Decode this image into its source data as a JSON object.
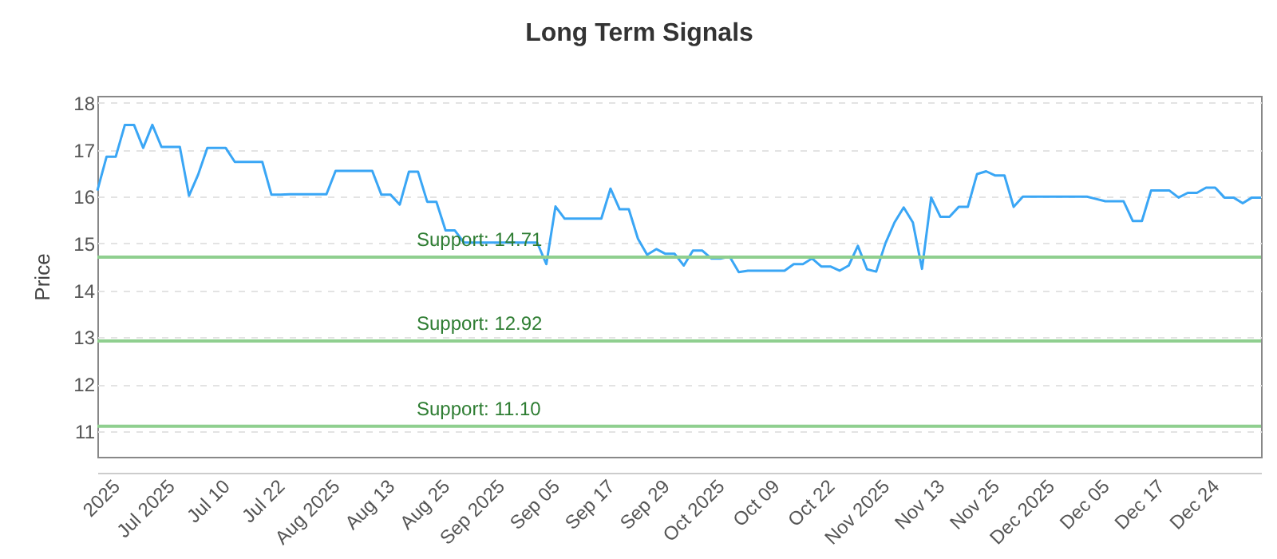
{
  "chart_data": {
    "type": "line",
    "title": "Long Term Signals",
    "ylabel": "Price",
    "categories": [
      null,
      null,
      "2025",
      null,
      null,
      null,
      null,
      null,
      "Jul 2025",
      null,
      null,
      null,
      null,
      null,
      "Jul 10",
      null,
      null,
      null,
      null,
      null,
      "Jul 22",
      null,
      null,
      null,
      null,
      null,
      "Aug 2025",
      null,
      null,
      null,
      null,
      null,
      "Aug 13",
      null,
      null,
      null,
      null,
      null,
      "Aug 25",
      null,
      null,
      null,
      null,
      null,
      "Sep 2025",
      null,
      null,
      null,
      null,
      null,
      "Sep 05",
      null,
      null,
      null,
      null,
      null,
      "Sep 17",
      null,
      null,
      null,
      null,
      null,
      "Sep 29",
      null,
      null,
      null,
      null,
      null,
      "Oct 2025",
      null,
      null,
      null,
      null,
      null,
      "Oct 09",
      null,
      null,
      null,
      null,
      null,
      "Oct 22",
      null,
      null,
      null,
      null,
      null,
      "Nov 2025",
      null,
      null,
      null,
      null,
      null,
      "Nov 13",
      null,
      null,
      null,
      null,
      null,
      "Nov 25",
      null,
      null,
      null,
      null,
      null,
      "Dec 2025",
      null,
      null,
      null,
      null,
      null,
      "Dec 05",
      null,
      null,
      null,
      null,
      null,
      "Dec 17",
      null,
      null,
      null,
      null,
      null,
      "Dec 24",
      null,
      null,
      null,
      null,
      null
    ],
    "series": [
      {
        "color": "#3aa6f5",
        "values": [
          16.13,
          16.85,
          16.85,
          17.53,
          17.53,
          17.04,
          17.53,
          17.06,
          17.06,
          17.06,
          16.02,
          16.47,
          17.04,
          17.04,
          17.04,
          16.74,
          16.74,
          16.74,
          16.74,
          16.04,
          16.04,
          16.05,
          16.05,
          16.05,
          16.05,
          16.05,
          16.55,
          16.55,
          16.55,
          16.55,
          16.55,
          16.04,
          16.04,
          15.83,
          16.53,
          16.53,
          15.89,
          15.89,
          15.28,
          15.28,
          15.02,
          15.02,
          15.02,
          15.02,
          15.02,
          15.02,
          15.02,
          15.02,
          15.02,
          14.56,
          15.79,
          15.53,
          15.53,
          15.53,
          15.53,
          15.53,
          16.17,
          15.73,
          15.73,
          15.1,
          14.76,
          14.88,
          14.78,
          14.78,
          14.53,
          14.85,
          14.85,
          14.68,
          14.68,
          14.72,
          14.39,
          14.42,
          14.42,
          14.42,
          14.42,
          14.42,
          14.56,
          14.56,
          14.68,
          14.51,
          14.51,
          14.42,
          14.53,
          14.95,
          14.45,
          14.4,
          15.0,
          15.45,
          15.77,
          15.45,
          14.46,
          15.98,
          15.57,
          15.57,
          15.78,
          15.78,
          16.48,
          16.54,
          16.45,
          16.45,
          15.78,
          16.0,
          16.0,
          16.0,
          16.0,
          16.0,
          16.0,
          16.0,
          16.0,
          15.95,
          15.9,
          15.9,
          15.9,
          15.48,
          15.48,
          16.13,
          16.13,
          16.13,
          15.98,
          16.08,
          16.08,
          16.19,
          16.19,
          15.98,
          15.98,
          15.86,
          15.98,
          15.98
        ]
      }
    ],
    "ylim": [
      10.45,
      18.15
    ],
    "yticks": [
      11,
      12,
      13,
      14,
      15,
      16,
      17,
      18
    ],
    "grid": "y",
    "marker": "none",
    "line_style": "solid",
    "ref_lines": [
      {
        "axis": "y",
        "value": 14.71,
        "label": "Support: 14.71",
        "color": "#8fcf8f"
      },
      {
        "axis": "y",
        "value": 12.92,
        "label": "Support: 12.92",
        "color": "#8fcf8f"
      },
      {
        "axis": "y",
        "value": 11.1,
        "label": "Support: 11.10",
        "color": "#8fcf8f"
      }
    ]
  }
}
